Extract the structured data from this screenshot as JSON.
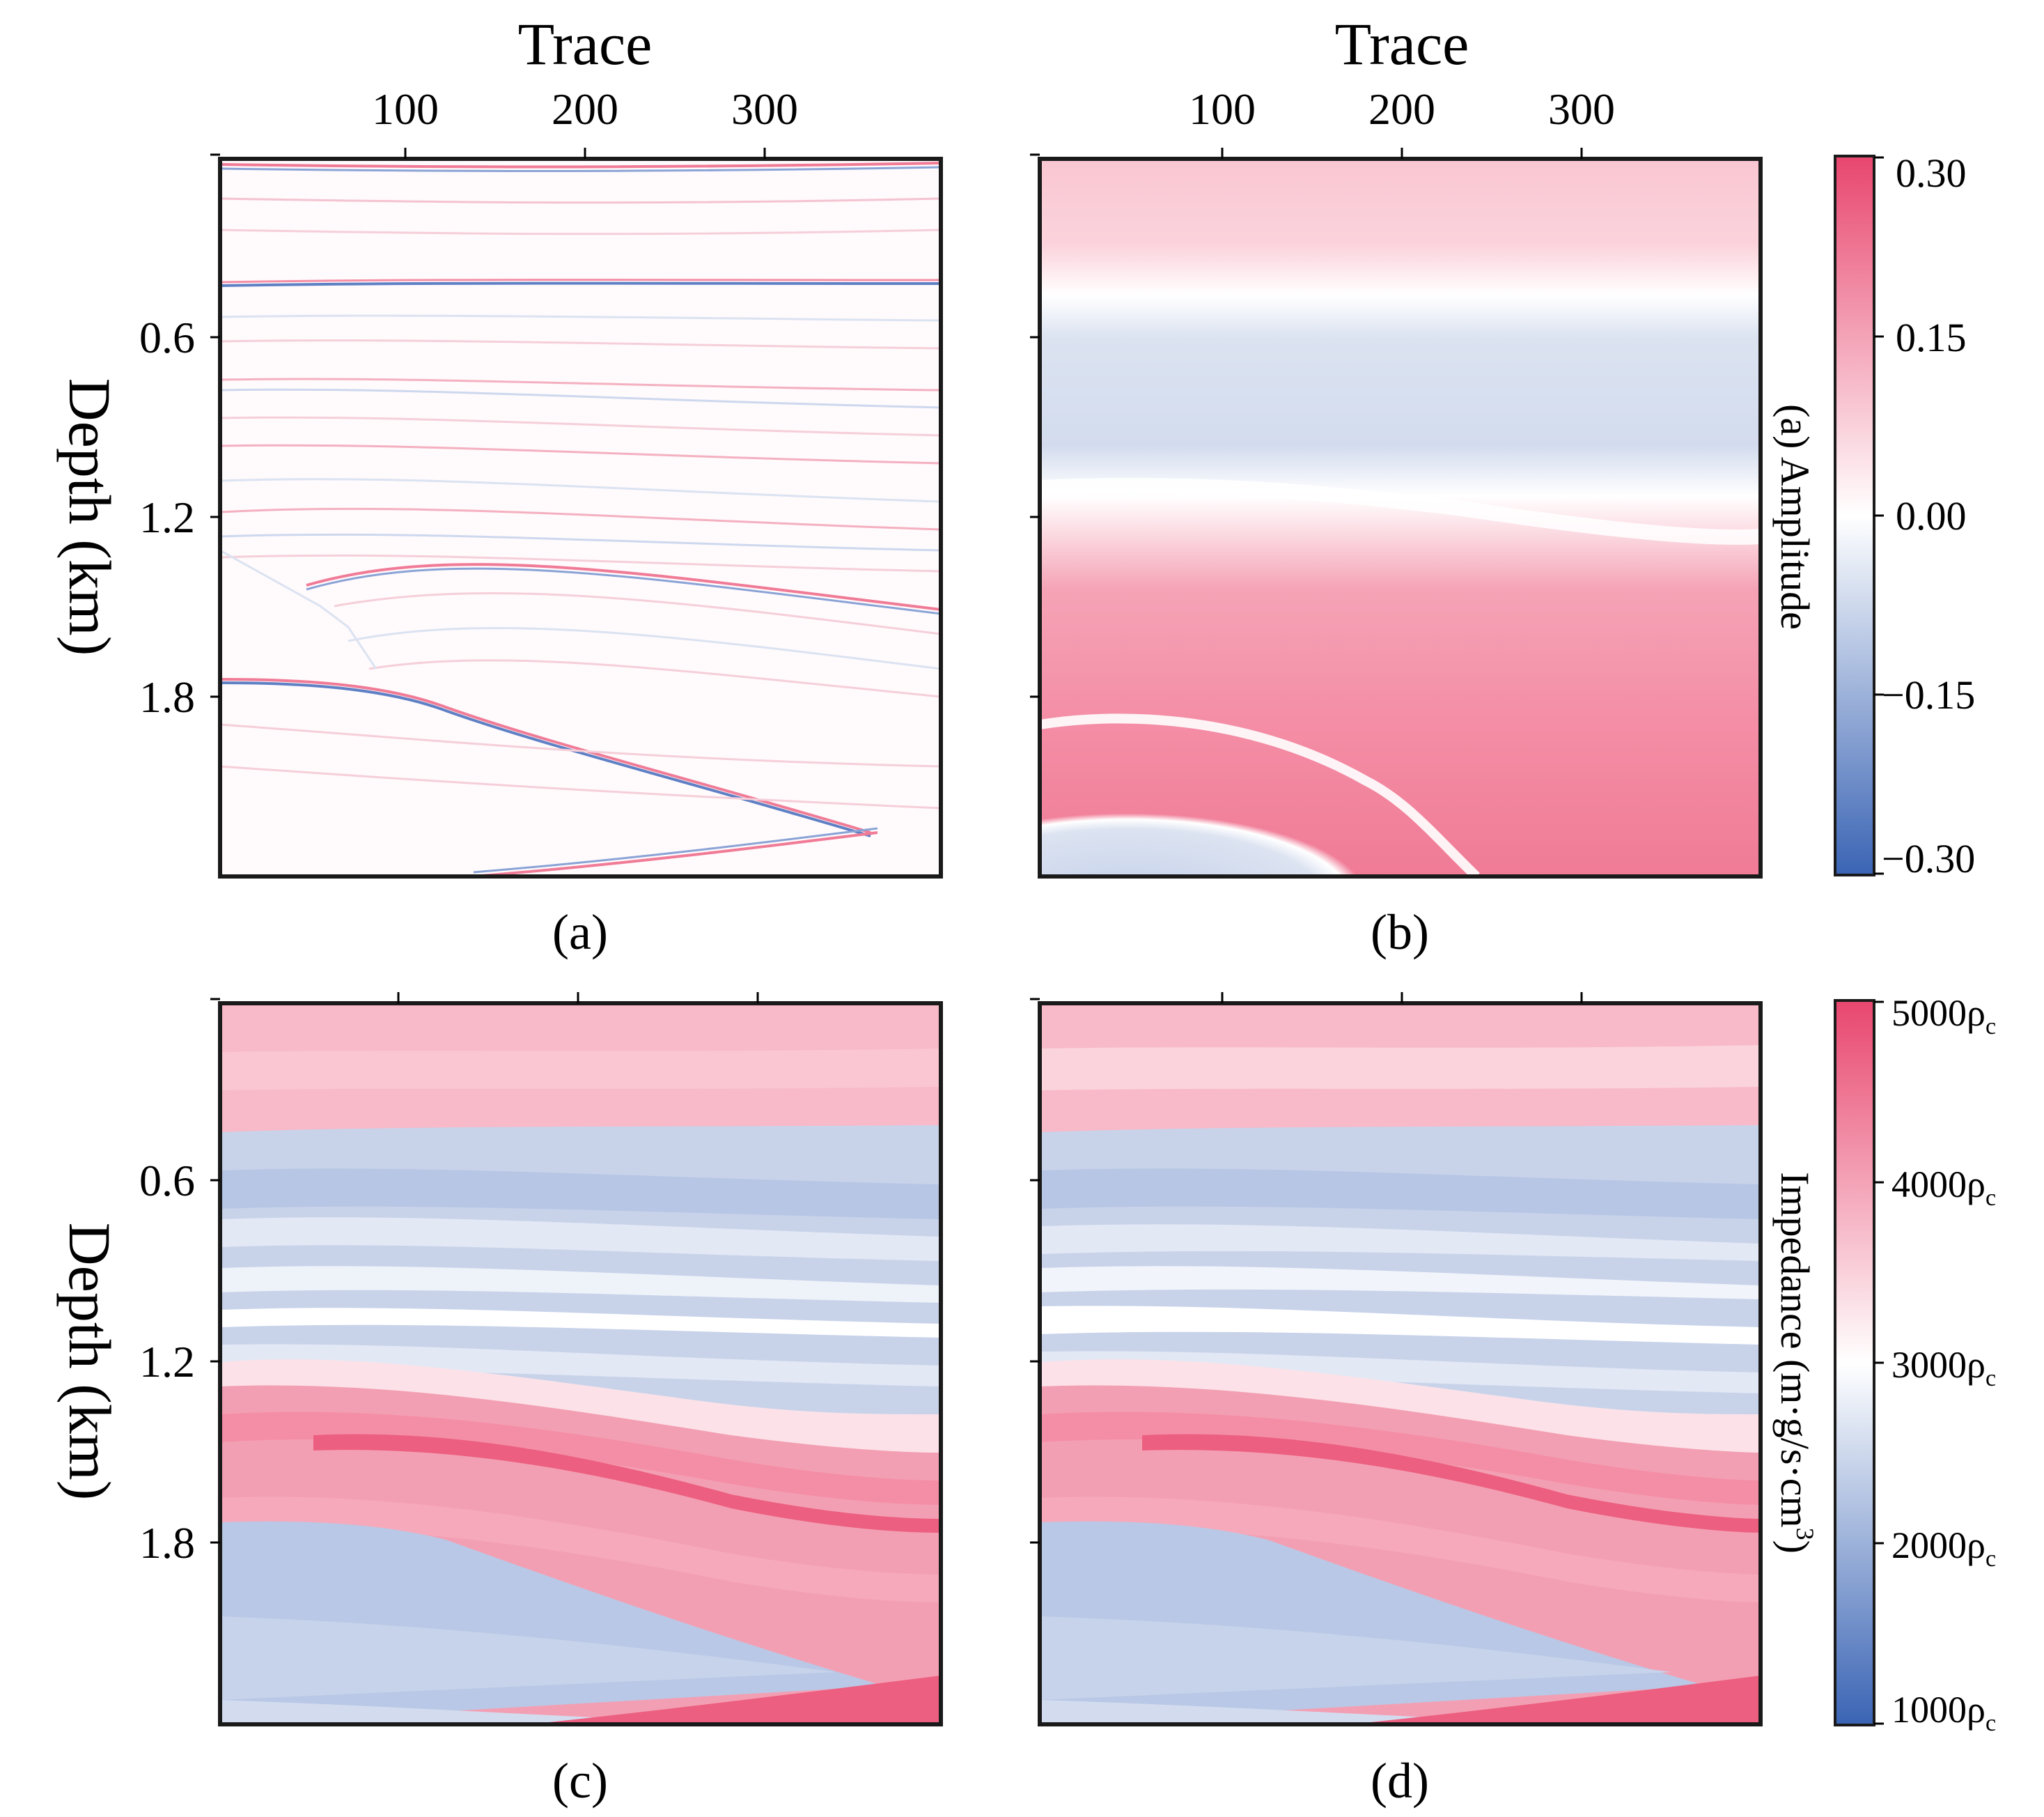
{
  "figure": {
    "colors": {
      "blue_end": "#3a64b4",
      "white_mid": "#ffffff",
      "red_end": "#e8466e",
      "frame": "#1a1a1a",
      "tick": "#000000"
    }
  },
  "labels": {
    "trace": "Trace",
    "depth": "Depth (km)",
    "amplitude_cbar": "(a) Amplitude",
    "impedance_cbar": "Impedance (m·g/s·cm",
    "impedance_cbar_sup": "3",
    "impedance_cbar_close": ")",
    "panel_a": "(a)",
    "panel_b": "(b)",
    "panel_c": "(c)",
    "panel_d": "(d)"
  },
  "chart_data": [
    {
      "id": "a",
      "type": "heatmap",
      "title": "(a)",
      "xlabel": "Trace",
      "ylabel": "Depth (km)",
      "xticks": [
        100,
        200,
        300
      ],
      "yticks": [
        0.6,
        1.2,
        1.8
      ],
      "xlim": [
        0,
        400
      ],
      "ylim": [
        0,
        2.4
      ],
      "colormap": "blue-white-red",
      "description": "reflectivity section: thin blue/red reflector lines on white"
    },
    {
      "id": "b",
      "type": "heatmap",
      "title": "(b)",
      "xlabel": "Trace",
      "xticks": [
        100,
        200,
        300
      ],
      "xlim": [
        0,
        400
      ],
      "ylim": [
        0,
        2.4
      ],
      "colormap": "blue-white-red",
      "colorbar": {
        "label": "(a) Amplitude",
        "ticks": [
          "0.30",
          "0.15",
          "0.00",
          "−0.15",
          "−0.30"
        ],
        "range": [
          -0.3,
          0.3
        ]
      }
    },
    {
      "id": "c",
      "type": "heatmap",
      "title": "(c)",
      "ylabel": "Depth (km)",
      "yticks": [
        0.6,
        1.2,
        1.8
      ],
      "xlim": [
        0,
        400
      ],
      "ylim": [
        0,
        2.4
      ],
      "colormap": "blue-white-red"
    },
    {
      "id": "d",
      "type": "heatmap",
      "title": "(d)",
      "xlim": [
        0,
        400
      ],
      "ylim": [
        0,
        2.4
      ],
      "colormap": "blue-white-red",
      "colorbar": {
        "label": "Impedance (m·g/s·cm3)",
        "ticks": [
          "5000ρ",
          "4000ρ",
          "3000ρ",
          "2000ρ",
          "1000ρ"
        ],
        "tick_subscript": "c",
        "range": [
          1000,
          5000
        ]
      }
    }
  ]
}
